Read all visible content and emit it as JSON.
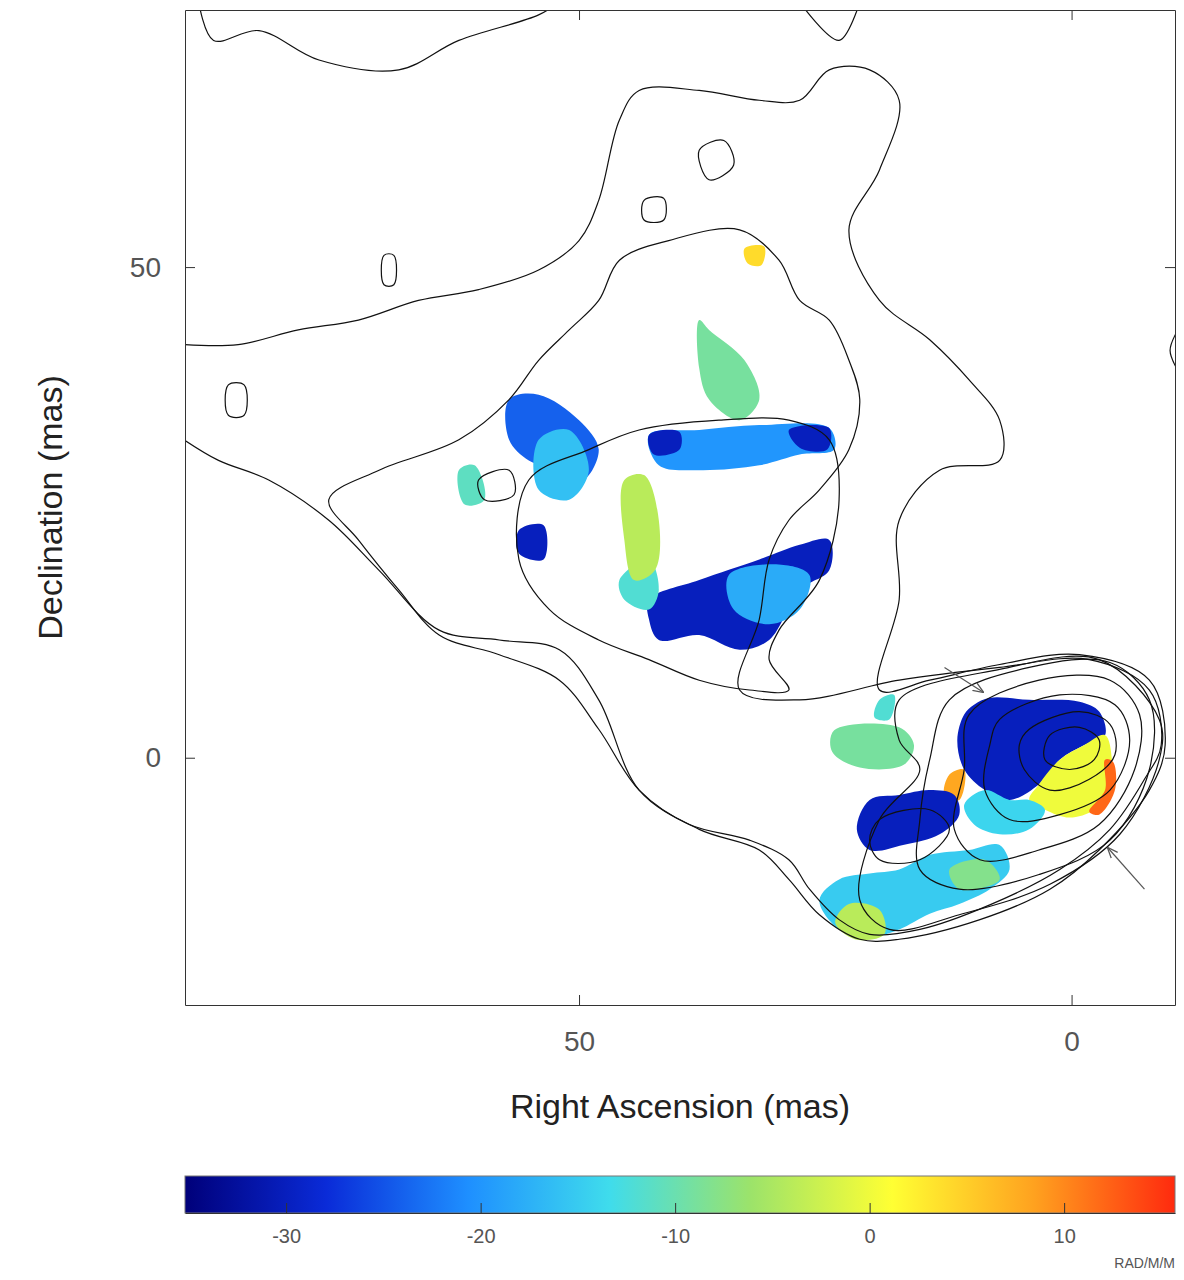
{
  "chart_data": {
    "type": "image",
    "xlabel": "Right Ascension (mas)",
    "ylabel": "Declination (mas)",
    "xlim": [
      90,
      -10.5
    ],
    "ylim": [
      -25.2,
      76.2
    ],
    "xticks": [
      50,
      0
    ],
    "yticks": [
      50,
      0
    ],
    "rm_patches": [
      {
        "value": -30,
        "x": [
          9.9,
          8.3,
          4.3,
          -0.8,
          -2.8,
          -3.4,
          -1.3,
          1.2,
          3.3,
          6.3,
          8.8,
          10.9,
          11.6,
          10.9
        ],
        "y": [
          5.4,
          6.1,
          5.9,
          5.7,
          4.7,
          2.3,
          1.3,
          -0.2,
          -2.7,
          -4.3,
          -3.3,
          -1.2,
          1.8,
          4.4
        ]
      },
      {
        "value": 0,
        "x": [
          -1.3,
          -3.4,
          -4.1,
          -3.9,
          -2.3,
          0.2,
          2.7,
          4.3,
          3.3,
          1.2
        ],
        "y": [
          1.3,
          2.3,
          -0.2,
          -3.3,
          -5.3,
          -6.1,
          -5.3,
          -4.3,
          -2.7,
          -0.2
        ]
      },
      {
        "value": 12,
        "x": [
          -3.4,
          -4.2,
          -4.4,
          -2.8,
          -1.8,
          -3.4
        ],
        "y": [
          -0.2,
          -0.4,
          -3.3,
          -5.8,
          -5.5,
          -3.3
        ]
      },
      {
        "value": -14,
        "x": [
          8.8,
          6.3,
          4.3,
          2.7,
          4.3,
          7.3,
          9.9,
          10.9
        ],
        "y": [
          -3.3,
          -4.3,
          -4.3,
          -5.3,
          -7.3,
          -7.8,
          -6.8,
          -4.8
        ]
      },
      {
        "value": 8,
        "x": [
          12.4,
          10.9,
          11.4,
          12.9
        ],
        "y": [
          -1.7,
          -1.2,
          -4.3,
          -3.8
        ]
      },
      {
        "value": -30,
        "x": [
          20.5,
          17.5,
          14.4,
          11.9,
          11.4,
          13.4,
          17.1,
          20.5,
          21.8
        ],
        "y": [
          -4.3,
          -3.8,
          -3.3,
          -3.8,
          -5.8,
          -7.8,
          -8.9,
          -9.4,
          -7.3
        ]
      },
      {
        "value": -15,
        "x": [
          17.5,
          14.4,
          10.4,
          7.3,
          6.3,
          8.3,
          11.4,
          14.4,
          17.5,
          20.5,
          23.6,
          25.6,
          23.6,
          20.5
        ],
        "y": [
          -11.4,
          -9.9,
          -9.4,
          -8.9,
          -11.4,
          -13.4,
          -14.9,
          -15.9,
          -17.5,
          -18.3,
          -17.5,
          -14.5,
          -12.4,
          -11.8
        ]
      },
      {
        "value": -4,
        "x": [
          22.6,
          19.5,
          19.0,
          22.0,
          24.0
        ],
        "y": [
          -14.9,
          -15.5,
          -18.0,
          -18.5,
          -16.8
        ]
      },
      {
        "value": -8,
        "x": [
          12.4,
          8.8,
          7.3,
          11.4
        ],
        "y": [
          -11.4,
          -10.4,
          -12.4,
          -13.4
        ]
      },
      {
        "value": -9,
        "x": [
          24.1,
          17.5,
          16.0,
          17.0,
          21.5,
          24.3
        ],
        "y": [
          2.8,
          3.1,
          1.3,
          -0.7,
          -1.0,
          0.6
        ]
      },
      {
        "value": -12,
        "x": [
          19.5,
          18.0,
          18.5,
          20.0
        ],
        "y": [
          5.9,
          6.4,
          3.9,
          4.1
        ]
      },
      {
        "value": -30,
        "x": [
          42.9,
          37.8,
          31.7,
          27.6,
          24.6,
          24.6,
          27.6,
          30.7,
          33.7,
          37.8,
          41.9,
          42.9
        ],
        "y": [
          16.1,
          18.1,
          20.2,
          21.7,
          22.2,
          19.1,
          17.1,
          12.0,
          11.0,
          12.5,
          12.0,
          14.1
        ]
      },
      {
        "value": -18,
        "x": [
          34.8,
          29.7,
          26.6,
          27.6,
          30.7,
          34.3
        ],
        "y": [
          18.6,
          19.7,
          18.6,
          15.1,
          13.6,
          15.1
        ]
      },
      {
        "value": -12,
        "x": [
          45.9,
          42.9,
          41.9,
          42.9,
          45.4
        ],
        "y": [
          18.1,
          20.2,
          17.1,
          15.1,
          16.1
        ]
      },
      {
        "value": -4,
        "x": [
          45.4,
          43.4,
          41.9,
          42.3,
          44.4,
          45.4
        ],
        "y": [
          28.3,
          28.8,
          24.2,
          19.1,
          18.1,
          22.2
        ]
      },
      {
        "value": -20,
        "x": [
          42.9,
          37.8,
          31.7,
          24.6,
          24.1,
          27.6,
          31.7,
          37.8,
          41.9
        ],
        "y": [
          32.9,
          33.4,
          33.9,
          33.6,
          31.4,
          30.9,
          29.8,
          29.3,
          29.8
        ]
      },
      {
        "value": -30,
        "x": [
          42.9,
          39.8,
          39.8,
          42.4
        ],
        "y": [
          32.9,
          33.2,
          31.4,
          30.9
        ]
      },
      {
        "value": -30,
        "x": [
          28.7,
          24.6,
          24.8,
          27.6
        ],
        "y": [
          33.4,
          33.6,
          31.4,
          31.6
        ]
      },
      {
        "value": -9,
        "x": [
          37.8,
          36.8,
          33.2,
          31.7,
          33.7,
          36.8,
          37.8
        ],
        "y": [
          44.6,
          43.6,
          40.5,
          36.5,
          34.4,
          36.5,
          39.7
        ]
      },
      {
        "value": -24,
        "x": [
          57.1,
          54.1,
          50.0,
          48.0,
          49.6,
          52.0,
          55.1,
          57.1
        ],
        "y": [
          36.5,
          37.0,
          34.4,
          31.4,
          28.3,
          29.3,
          30.3,
          32.4
        ]
      },
      {
        "value": -16,
        "x": [
          54.1,
          51.0,
          49.0,
          51.0,
          54.1
        ],
        "y": [
          32.4,
          33.4,
          29.3,
          26.3,
          27.3
        ]
      },
      {
        "value": -30,
        "x": [
          56.1,
          53.6,
          53.6,
          56.1
        ],
        "y": [
          23.2,
          23.7,
          20.2,
          20.8
        ]
      },
      {
        "value": -11,
        "x": [
          62.2,
          60.6,
          59.6,
          61.6
        ],
        "y": [
          29.3,
          29.8,
          26.3,
          25.8
        ]
      },
      {
        "value": 4,
        "x": [
          33.2,
          31.2,
          31.5,
          32.9
        ],
        "y": [
          51.9,
          52.1,
          50.2,
          50.4
        ]
      }
    ],
    "contours": [
      {
        "x": [
          75.4,
          70.3,
          62.2,
          57.1,
          54.1,
          51.0,
          48.0,
          45.9,
          40.9,
          33.7,
          29.7,
          27.6,
          24.6,
          22.6,
          21.5,
          22.6,
          25.6,
          28.7,
          30.7,
          31.7,
          33.7,
          27.6,
          17.5,
          7.3,
          -1.8,
          -7.9,
          -9.1,
          -7.4,
          -3.9,
          1.2,
          8.3,
          15.4,
          20.5,
          23.6,
          26.6,
          28.7,
          32.7,
          38.8,
          43.9,
          48.0,
          52.0,
          58.1,
          64.2,
          68.3,
          72.4
        ],
        "y": [
          26.3,
          29.3,
          32.4,
          36.5,
          40.5,
          43.6,
          46.6,
          50.7,
          52.7,
          53.8,
          50.7,
          46.6,
          44.6,
          40.5,
          36.5,
          31.4,
          27.3,
          24.2,
          20.2,
          14.1,
          6.9,
          5.9,
          7.9,
          9.2,
          10.0,
          6.9,
          1.3,
          -2.2,
          -7.3,
          -11.4,
          -15.0,
          -17.5,
          -18.0,
          -16.5,
          -13.4,
          -10.4,
          -8.4,
          -6.8,
          -3.3,
          2.9,
          7.9,
          10.5,
          12.5,
          17.1,
          22.2
        ]
      },
      {
        "x": [
          56.1,
          55.1,
          49.0,
          43.9,
          35.8,
          28.7,
          24.6,
          23.6,
          25.6,
          29.7,
          30.7,
          28.7,
          32.7,
          37.8,
          42.9,
          48.0,
          53.0
        ],
        "y": [
          20.2,
          28.3,
          31.4,
          33.4,
          34.4,
          34.4,
          32.4,
          26.3,
          18.1,
          13.0,
          10.0,
          6.9,
          6.9,
          7.9,
          10.0,
          12.0,
          15.1
        ]
      },
      {
        "x": [
          2.2,
          -0.8,
          -2.8,
          -2.3,
          0.2,
          2.7
        ],
        "y": [
          2.3,
          3.1,
          1.8,
          -0.2,
          -1.2,
          -0.2
        ]
      },
      {
        "x": [
          4.3,
          -0.8,
          -3.9,
          -4.4,
          -1.8,
          2.2,
          4.8,
          5.3
        ],
        "y": [
          2.9,
          4.7,
          3.4,
          0.3,
          -2.2,
          -3.3,
          -1.2,
          1.3
        ]
      },
      {
        "x": [
          7.3,
          1.2,
          -4.4,
          -5.9,
          -3.9,
          1.2,
          6.3,
          8.8,
          8.3
        ],
        "y": [
          3.9,
          6.4,
          5.4,
          1.8,
          -3.3,
          -5.8,
          -6.3,
          -3.3,
          1.3
        ]
      },
      {
        "x": [
          10.4,
          3.3,
          -3.9,
          -6.9,
          -6.4,
          -2.8,
          3.3,
          9.3,
          11.9,
          10.9
        ],
        "y": [
          4.4,
          7.9,
          7.9,
          4.4,
          -1.2,
          -6.8,
          -9.4,
          -10.4,
          -7.3,
          -1.2
        ]
      },
      {
        "x": [
          12.4,
          4.3,
          -3.9,
          -7.9,
          -7.9,
          -3.9,
          3.3,
          11.4,
          15.4,
          15.4,
          14.4
        ],
        "y": [
          5.9,
          9.2,
          9.7,
          5.9,
          -1.2,
          -8.4,
          -11.9,
          -13.4,
          -11.4,
          -6.3,
          -0.2
        ]
      },
      {
        "x": [
          17.5,
          7.3,
          -2.8,
          -8.9,
          -8.9,
          -4.9,
          2.2,
          11.4,
          18.5,
          21.5,
          19.5,
          15.4,
          17.5
        ],
        "y": [
          5.9,
          9.0,
          10.0,
          3.9,
          -0.2,
          -7.8,
          -12.9,
          -16.0,
          -17.5,
          -14.5,
          -6.3,
          -1.2,
          1.8
        ]
      },
      {
        "x": [
          19.5,
          14.4,
          12.4,
          15.4,
          19.5,
          20.5
        ],
        "y": [
          -6.3,
          -5.3,
          -7.3,
          -10.4,
          -10.4,
          -8.4
        ]
      },
      {
        "x": [
          60.2,
          57.1,
          56.6,
          59.6
        ],
        "y": [
          28.3,
          29.3,
          26.8,
          26.3
        ]
      },
      {
        "x": [
          37.8,
          35.3,
          34.3,
          36.8
        ],
        "y": [
          61.9,
          62.9,
          60.4,
          58.9
        ]
      },
      {
        "x": [
          43.4,
          41.4,
          41.4,
          43.4
        ],
        "y": [
          56.8,
          57.0,
          54.8,
          54.8
        ]
      },
      {
        "x": [
          69.8,
          68.8,
          68.8,
          69.8
        ],
        "y": [
          51.2,
          51.2,
          48.2,
          48.2
        ]
      },
      {
        "x": [
          85.6,
          84.0,
          84.0,
          85.6
        ],
        "y": [
          38.0,
          38.0,
          34.9,
          34.9
        ]
      }
    ],
    "contour_fragments": [
      {
        "x": [
          90.1,
          84.6,
          78.5,
          72.4,
          66.3,
          60.2,
          54.1,
          50.0,
          48.0,
          45.9,
          43.9,
          37.8,
          31.7,
          27.6,
          24.6,
          20.5,
          17.5,
          19.5,
          22.6,
          19.5,
          14.4,
          10.4,
          7.3,
          7.3,
          13.4,
          17.5,
          17.5,
          19.5,
          14.4,
          7.3,
          -0.8,
          -7.9,
          -9.5,
          -7.9,
          -2.8,
          2.2,
          9.3,
          17.5,
          21.5,
          25.6,
          28.7,
          31.7,
          37.8,
          43.9,
          48.0,
          52.0,
          58.1,
          64.2,
          70.3,
          75.4,
          81.5,
          86.6,
          90.1
        ],
        "y": [
          42.1,
          42.1,
          43.6,
          44.6,
          46.6,
          47.7,
          49.7,
          52.7,
          56.8,
          65.0,
          68.0,
          68.0,
          67.0,
          67.0,
          70.1,
          70.1,
          67.0,
          59.9,
          53.8,
          46.6,
          42.6,
          38.5,
          34.4,
          30.3,
          29.3,
          24.2,
          16.1,
          6.9,
          7.9,
          9.5,
          10.5,
          7.9,
          1.3,
          -3.3,
          -9.4,
          -13.4,
          -16.5,
          -18.5,
          -18.5,
          -16.0,
          -12.4,
          -9.4,
          -7.3,
          -3.3,
          5.9,
          11.0,
          12.0,
          13.0,
          19.1,
          24.2,
          28.3,
          30.3,
          32.4
        ]
      },
      {
        "x": [
          88.6,
          87.1,
          82.5,
          76.4,
          68.3,
          62.2,
          54.1,
          52.0
        ],
        "y": [
          77,
          73.1,
          74.1,
          71.1,
          70.1,
          73.1,
          75.7,
          77
        ]
      },
      {
        "x": [
          27.6,
          23.6,
          21.5
        ],
        "y": [
          77,
          73.1,
          77
        ]
      },
      {
        "x": [
          -11.4,
          -10.0,
          -11.4
        ],
        "y": [
          44.6,
          41.5,
          38.5
        ]
      }
    ],
    "arrows": [
      {
        "x": [
          12.9,
          9.0
        ],
        "y": [
          9.2,
          6.7
        ]
      },
      {
        "x": [
          -7.4,
          -3.7
        ],
        "y": [
          -13.4,
          -9.2
        ]
      }
    ],
    "colorbar": {
      "label": "RAD/M/M",
      "range": [
        -35.2,
        15.7
      ],
      "ticks": [
        -30,
        -20,
        -10,
        0,
        10
      ]
    }
  }
}
